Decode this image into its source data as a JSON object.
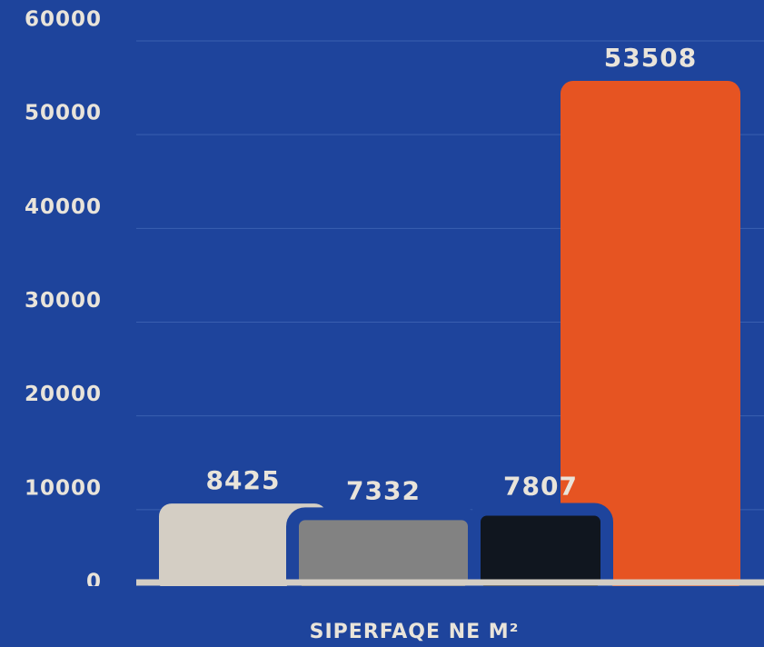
{
  "chart_data": {
    "type": "bar",
    "x_label": "SIPËRFAQE NË M²",
    "values": [
      8425,
      7332,
      7807,
      53508
    ],
    "colors": [
      "#d4cec4",
      "#828282",
      "#10161f",
      "#e65422"
    ],
    "ylim": [
      0,
      60000
    ],
    "yticks": [
      0,
      10000,
      20000,
      30000,
      40000,
      50000,
      60000
    ],
    "grid": true
  }
}
